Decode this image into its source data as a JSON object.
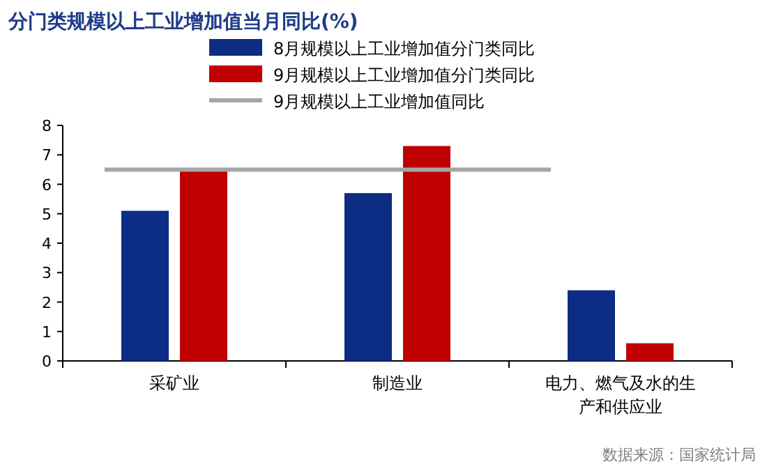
{
  "chart_data": {
    "type": "bar",
    "title": "分门类规模以上工业增加值当月同比(%)",
    "categories": [
      "采矿业",
      "制造业",
      "电力、燃气及水的生产和供应业"
    ],
    "series": [
      {
        "name": "8月规模以上工业增加值分门类同比",
        "color": "#0d2c84",
        "values": [
          5.1,
          5.7,
          2.4
        ]
      },
      {
        "name": "9月规模以上工业增加值分门类同比",
        "color": "#c00000",
        "values": [
          6.5,
          7.3,
          0.6
        ]
      }
    ],
    "ref_lines": [
      {
        "axis": "y",
        "value": 6.5,
        "label": "9月规模以上工业增加值同比",
        "color": "#a6a6a6"
      }
    ],
    "ylim": [
      0,
      8
    ],
    "yticks": [
      0,
      1,
      2,
      3,
      4,
      5,
      6,
      7,
      8
    ],
    "legend": "top right",
    "grid": false,
    "annotations": [
      "数据来源：国家统计局"
    ]
  }
}
